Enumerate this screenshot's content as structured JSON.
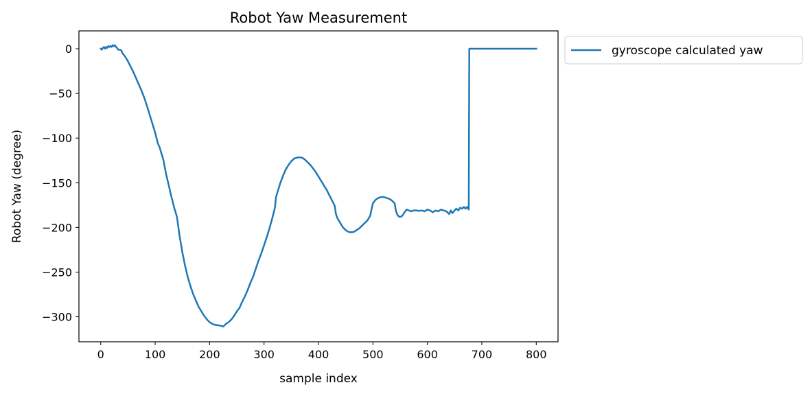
{
  "chart_data": {
    "type": "line",
    "title": "Robot Yaw Measurement",
    "xlabel": "sample index",
    "ylabel": "Robot Yaw (degree)",
    "xlim": [
      -40,
      840
    ],
    "ylim": [
      -328,
      20
    ],
    "x_ticks": [
      0,
      100,
      200,
      300,
      400,
      500,
      600,
      700,
      800
    ],
    "x_tick_labels": [
      "0",
      "100",
      "200",
      "300",
      "400",
      "500",
      "600",
      "700",
      "800"
    ],
    "y_ticks": [
      0,
      -50,
      -100,
      -150,
      -200,
      -250,
      -300
    ],
    "y_tick_labels": [
      "0",
      "−50",
      "−100",
      "−150",
      "−200",
      "−250",
      "−300"
    ],
    "grid": false,
    "legend_position": "outside-upper-right",
    "series": [
      {
        "name": "gyroscope calculated yaw",
        "color": "#1f77b4",
        "points": [
          [
            0,
            0
          ],
          [
            2,
            -1
          ],
          [
            4,
            1
          ],
          [
            6,
            2
          ],
          [
            8,
            0
          ],
          [
            10,
            2
          ],
          [
            12,
            1
          ],
          [
            14,
            3
          ],
          [
            16,
            2
          ],
          [
            18,
            3
          ],
          [
            20,
            2
          ],
          [
            22,
            4
          ],
          [
            24,
            3
          ],
          [
            26,
            4
          ],
          [
            28,
            2
          ],
          [
            30,
            1
          ],
          [
            32,
            -1
          ],
          [
            35,
            -1
          ],
          [
            38,
            -2
          ],
          [
            40,
            -5
          ],
          [
            45,
            -9
          ],
          [
            50,
            -14
          ],
          [
            55,
            -20
          ],
          [
            60,
            -26
          ],
          [
            65,
            -33
          ],
          [
            70,
            -40
          ],
          [
            75,
            -47
          ],
          [
            80,
            -55
          ],
          [
            85,
            -64
          ],
          [
            90,
            -74
          ],
          [
            95,
            -84
          ],
          [
            100,
            -94
          ],
          [
            105,
            -106
          ],
          [
            108,
            -110
          ],
          [
            112,
            -118
          ],
          [
            115,
            -124
          ],
          [
            120,
            -140
          ],
          [
            125,
            -153
          ],
          [
            130,
            -166
          ],
          [
            135,
            -178
          ],
          [
            140,
            -188
          ],
          [
            142,
            -197
          ],
          [
            145,
            -210
          ],
          [
            150,
            -228
          ],
          [
            155,
            -243
          ],
          [
            160,
            -256
          ],
          [
            165,
            -266
          ],
          [
            170,
            -275
          ],
          [
            175,
            -282
          ],
          [
            180,
            -289
          ],
          [
            185,
            -294
          ],
          [
            190,
            -299
          ],
          [
            195,
            -303
          ],
          [
            200,
            -306
          ],
          [
            205,
            -308
          ],
          [
            210,
            -309
          ],
          [
            215,
            -309.5
          ],
          [
            220,
            -310
          ],
          [
            225,
            -311
          ],
          [
            230,
            -308
          ],
          [
            235,
            -306
          ],
          [
            240,
            -303
          ],
          [
            245,
            -299
          ],
          [
            250,
            -294
          ],
          [
            255,
            -290
          ],
          [
            260,
            -283
          ],
          [
            265,
            -277
          ],
          [
            270,
            -270
          ],
          [
            275,
            -262
          ],
          [
            280,
            -255
          ],
          [
            285,
            -246
          ],
          [
            290,
            -237
          ],
          [
            295,
            -229
          ],
          [
            300,
            -220
          ],
          [
            305,
            -211
          ],
          [
            310,
            -201
          ],
          [
            315,
            -190
          ],
          [
            320,
            -178
          ],
          [
            322,
            -166
          ],
          [
            325,
            -160
          ],
          [
            330,
            -150
          ],
          [
            335,
            -142
          ],
          [
            340,
            -135
          ],
          [
            345,
            -130
          ],
          [
            350,
            -126
          ],
          [
            355,
            -123
          ],
          [
            360,
            -122
          ],
          [
            365,
            -121.5
          ],
          [
            370,
            -122
          ],
          [
            375,
            -124
          ],
          [
            380,
            -127
          ],
          [
            385,
            -130
          ],
          [
            390,
            -134
          ],
          [
            395,
            -138
          ],
          [
            400,
            -143
          ],
          [
            405,
            -148
          ],
          [
            410,
            -153
          ],
          [
            415,
            -158
          ],
          [
            420,
            -164
          ],
          [
            425,
            -170
          ],
          [
            430,
            -176
          ],
          [
            432,
            -185
          ],
          [
            435,
            -190
          ],
          [
            440,
            -195
          ],
          [
            445,
            -200
          ],
          [
            450,
            -203
          ],
          [
            455,
            -205
          ],
          [
            460,
            -205.5
          ],
          [
            465,
            -205
          ],
          [
            470,
            -203
          ],
          [
            475,
            -201
          ],
          [
            480,
            -198
          ],
          [
            485,
            -195
          ],
          [
            490,
            -192
          ],
          [
            495,
            -187
          ],
          [
            498,
            -178
          ],
          [
            500,
            -173
          ],
          [
            505,
            -169
          ],
          [
            510,
            -167
          ],
          [
            515,
            -166
          ],
          [
            520,
            -166
          ],
          [
            525,
            -167
          ],
          [
            530,
            -168
          ],
          [
            535,
            -170
          ],
          [
            540,
            -173
          ],
          [
            542,
            -181
          ],
          [
            545,
            -186
          ],
          [
            548,
            -188
          ],
          [
            552,
            -188
          ],
          [
            555,
            -186
          ],
          [
            558,
            -183
          ],
          [
            562,
            -180
          ],
          [
            566,
            -181
          ],
          [
            570,
            -182
          ],
          [
            575,
            -181
          ],
          [
            580,
            -181
          ],
          [
            585,
            -181.5
          ],
          [
            590,
            -181
          ],
          [
            595,
            -182
          ],
          [
            600,
            -180
          ],
          [
            605,
            -181
          ],
          [
            610,
            -183
          ],
          [
            615,
            -181
          ],
          [
            620,
            -182
          ],
          [
            625,
            -180
          ],
          [
            630,
            -181
          ],
          [
            635,
            -182
          ],
          [
            640,
            -185
          ],
          [
            643,
            -181
          ],
          [
            646,
            -184
          ],
          [
            650,
            -181
          ],
          [
            653,
            -179
          ],
          [
            657,
            -181
          ],
          [
            660,
            -178
          ],
          [
            664,
            -179
          ],
          [
            667,
            -177
          ],
          [
            670,
            -179
          ],
          [
            673,
            -177
          ],
          [
            676,
            -180
          ],
          [
            677,
            0
          ],
          [
            680,
            0
          ],
          [
            700,
            0
          ],
          [
            720,
            0
          ],
          [
            740,
            0
          ],
          [
            760,
            0
          ],
          [
            780,
            0
          ],
          [
            800,
            0
          ]
        ]
      }
    ]
  }
}
